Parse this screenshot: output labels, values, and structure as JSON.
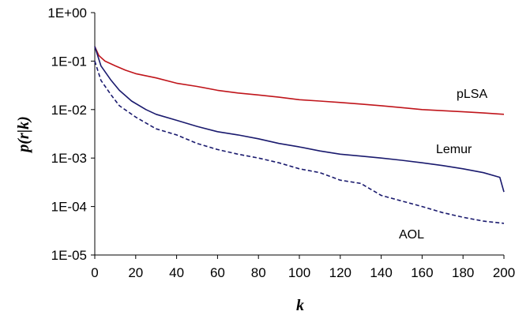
{
  "chart_data": {
    "type": "line",
    "title": "",
    "xlabel": "k",
    "ylabel": "p(r|k)",
    "xlim": [
      0,
      200
    ],
    "ylim": [
      1e-05,
      1
    ],
    "yscale": "log",
    "grid": false,
    "legend": "inline-labels",
    "x_ticks": [
      "0",
      "20",
      "40",
      "60",
      "80",
      "100",
      "120",
      "140",
      "160",
      "180",
      "200"
    ],
    "y_ticks": [
      "1E+00",
      "1E-01",
      "1E-02",
      "1E-03",
      "1E-04",
      "1E-05"
    ],
    "series": [
      {
        "name": "pLSA",
        "color": "#c0151b",
        "style": "solid",
        "points": [
          [
            0,
            0.2
          ],
          [
            2,
            0.13
          ],
          [
            5,
            0.1
          ],
          [
            10,
            0.08
          ],
          [
            15,
            0.065
          ],
          [
            20,
            0.055
          ],
          [
            30,
            0.045
          ],
          [
            40,
            0.035
          ],
          [
            50,
            0.03
          ],
          [
            60,
            0.025
          ],
          [
            70,
            0.022
          ],
          [
            80,
            0.02
          ],
          [
            90,
            0.018
          ],
          [
            100,
            0.016
          ],
          [
            110,
            0.015
          ],
          [
            120,
            0.014
          ],
          [
            130,
            0.013
          ],
          [
            140,
            0.012
          ],
          [
            150,
            0.011
          ],
          [
            160,
            0.01
          ],
          [
            170,
            0.0095
          ],
          [
            180,
            0.009
          ],
          [
            190,
            0.0085
          ],
          [
            200,
            0.008
          ]
        ]
      },
      {
        "name": "Lemur",
        "color": "#1a1a6e",
        "style": "solid",
        "points": [
          [
            0,
            0.2
          ],
          [
            3,
            0.08
          ],
          [
            8,
            0.04
          ],
          [
            12,
            0.025
          ],
          [
            18,
            0.015
          ],
          [
            25,
            0.01
          ],
          [
            30,
            0.008
          ],
          [
            40,
            0.006
          ],
          [
            50,
            0.0045
          ],
          [
            60,
            0.0035
          ],
          [
            70,
            0.003
          ],
          [
            80,
            0.0025
          ],
          [
            90,
            0.002
          ],
          [
            100,
            0.0017
          ],
          [
            110,
            0.0014
          ],
          [
            120,
            0.0012
          ],
          [
            130,
            0.0011
          ],
          [
            140,
            0.001
          ],
          [
            150,
            0.0009
          ],
          [
            160,
            0.0008
          ],
          [
            170,
            0.0007
          ],
          [
            180,
            0.0006
          ],
          [
            190,
            0.0005
          ],
          [
            198,
            0.0004
          ],
          [
            200,
            0.0002
          ]
        ]
      },
      {
        "name": "AOL",
        "color": "#1a1a6e",
        "style": "dashed",
        "points": [
          [
            0,
            0.1
          ],
          [
            3,
            0.04
          ],
          [
            8,
            0.02
          ],
          [
            12,
            0.012
          ],
          [
            20,
            0.007
          ],
          [
            30,
            0.004
          ],
          [
            40,
            0.003
          ],
          [
            50,
            0.002
          ],
          [
            60,
            0.0015
          ],
          [
            70,
            0.0012
          ],
          [
            80,
            0.001
          ],
          [
            90,
            0.0008
          ],
          [
            100,
            0.0006
          ],
          [
            110,
            0.0005
          ],
          [
            120,
            0.00035
          ],
          [
            130,
            0.0003
          ],
          [
            140,
            0.00017
          ],
          [
            150,
            0.00013
          ],
          [
            160,
            0.0001
          ],
          [
            170,
            7.5e-05
          ],
          [
            180,
            6e-05
          ],
          [
            190,
            5e-05
          ],
          [
            200,
            4.5e-05
          ]
        ]
      }
    ]
  }
}
